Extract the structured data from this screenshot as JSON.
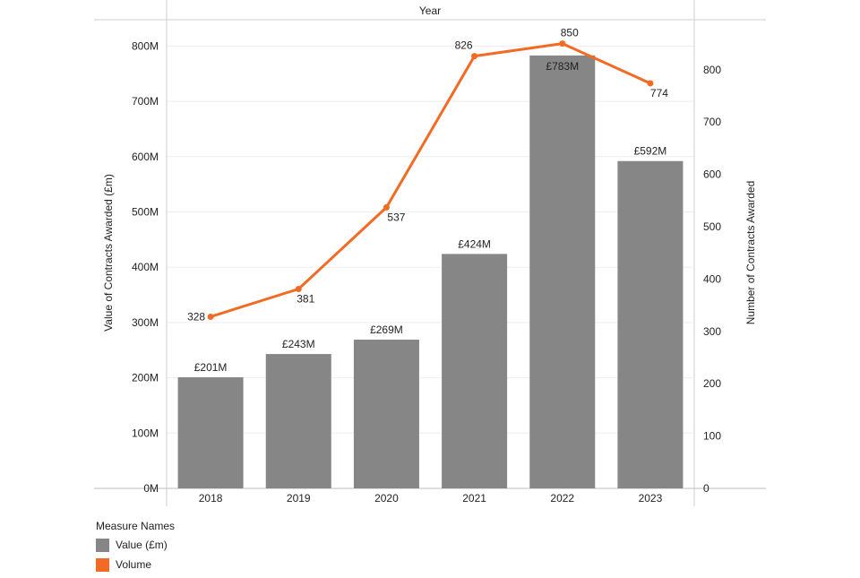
{
  "chart_data": {
    "type": "bar+line",
    "header_title": "Year",
    "categories": [
      "2018",
      "2019",
      "2020",
      "2021",
      "2022",
      "2023"
    ],
    "series": [
      {
        "name": "Value (£m)",
        "type": "bar",
        "axis": "left",
        "color": "#868686",
        "values": [
          201,
          243,
          269,
          424,
          783,
          592
        ],
        "labels": [
          "£201M",
          "£243M",
          "£269M",
          "£424M",
          "£783M",
          "£592M"
        ]
      },
      {
        "name": "Volume",
        "type": "line",
        "axis": "right",
        "color": "#F26A23",
        "values": [
          328,
          381,
          537,
          826,
          850,
          774
        ],
        "labels": [
          "328",
          "381",
          "537",
          "826",
          "850",
          "774"
        ]
      }
    ],
    "y_left": {
      "label": "Value of Contracts Awarded (£m)",
      "min": 0,
      "max": 900,
      "ticks": [
        0,
        100,
        200,
        300,
        400,
        500,
        600,
        700,
        800
      ],
      "tick_labels": [
        "0M",
        "100M",
        "200M",
        "300M",
        "400M",
        "500M",
        "600M",
        "700M",
        "800M"
      ]
    },
    "y_right": {
      "label": "Number of Contracts Awarded",
      "min": 0,
      "max": 930,
      "ticks": [
        0,
        100,
        200,
        300,
        400,
        500,
        600,
        700,
        800
      ],
      "tick_labels": [
        "0",
        "100",
        "200",
        "300",
        "400",
        "500",
        "600",
        "700",
        "800"
      ]
    },
    "grid": true,
    "legend": {
      "title": "Measure Names",
      "position": "bottom-left",
      "items": [
        "Value (£m)",
        "Volume"
      ]
    }
  }
}
